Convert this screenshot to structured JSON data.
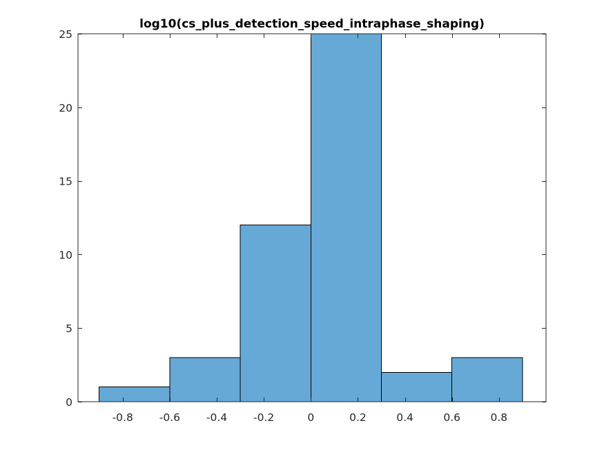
{
  "chart_data": {
    "type": "bar",
    "subtype": "histogram",
    "title": "log10(cs_plus_detection_speed_intraphase_shaping)",
    "xlabel": "",
    "ylabel": "",
    "bin_edges": [
      -0.9,
      -0.6,
      -0.3,
      0.0,
      0.3,
      0.6,
      0.9
    ],
    "values": [
      1,
      3,
      12,
      25,
      2,
      3
    ],
    "xlim": [
      -0.99,
      1.0
    ],
    "ylim": [
      0,
      25
    ],
    "xticks": [
      -0.8,
      -0.6,
      -0.4,
      -0.2,
      0,
      0.2,
      0.4,
      0.6,
      0.8
    ],
    "xtick_labels": [
      "-0.8",
      "-0.6",
      "-0.4",
      "-0.2",
      "0",
      "0.2",
      "0.4",
      "0.6",
      "0.8"
    ],
    "yticks": [
      0,
      5,
      10,
      15,
      20,
      25
    ],
    "ytick_labels": [
      "0",
      "5",
      "10",
      "15",
      "20",
      "25"
    ],
    "bar_color": "#66a9d7",
    "edge_color": "#000000",
    "grid": false,
    "legend": "none"
  }
}
